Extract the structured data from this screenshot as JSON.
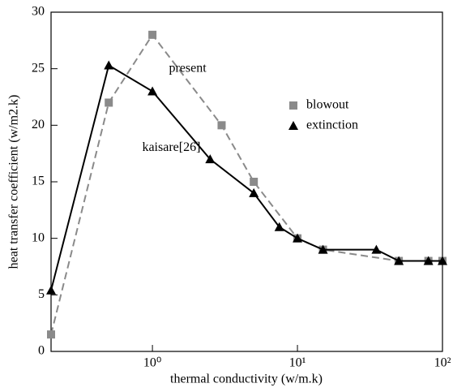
{
  "chart_data": {
    "type": "line",
    "xlabel": "thermal conductivity (w/m.k)",
    "ylabel": "heat transfer coefficient (w/m2.k)",
    "xscale": "log",
    "xlim": [
      0.2,
      100
    ],
    "ylim": [
      0,
      30
    ],
    "xticks": [
      {
        "value": 1,
        "label": "10⁰"
      },
      {
        "value": 10,
        "label": "10¹"
      },
      {
        "value": 100,
        "label": "10²"
      }
    ],
    "yticks": [
      0,
      5,
      10,
      15,
      20,
      25,
      30
    ],
    "legend": "upper right",
    "series": [
      {
        "name": "blowout",
        "color": "#8a8a8a",
        "marker": "square",
        "dashed": true,
        "x": [
          0.2,
          0.5,
          1,
          3,
          5,
          10,
          15,
          50,
          80,
          100
        ],
        "values": [
          1.5,
          22,
          28,
          20,
          15,
          10,
          9,
          8,
          8,
          8
        ]
      },
      {
        "name": "extinction",
        "color": "#000000",
        "marker": "triangle",
        "dashed": false,
        "x": [
          0.2,
          0.5,
          1,
          2.5,
          5,
          7.5,
          10,
          15,
          35,
          50,
          80,
          100
        ],
        "values": [
          5.4,
          25.3,
          23,
          17,
          14,
          11,
          10,
          9,
          9,
          8,
          8,
          8
        ]
      }
    ],
    "annotations": [
      {
        "text": "present",
        "x": 1.3,
        "y": 25
      },
      {
        "text": "kaisare[26]",
        "x": 0.85,
        "y": 18
      }
    ]
  }
}
